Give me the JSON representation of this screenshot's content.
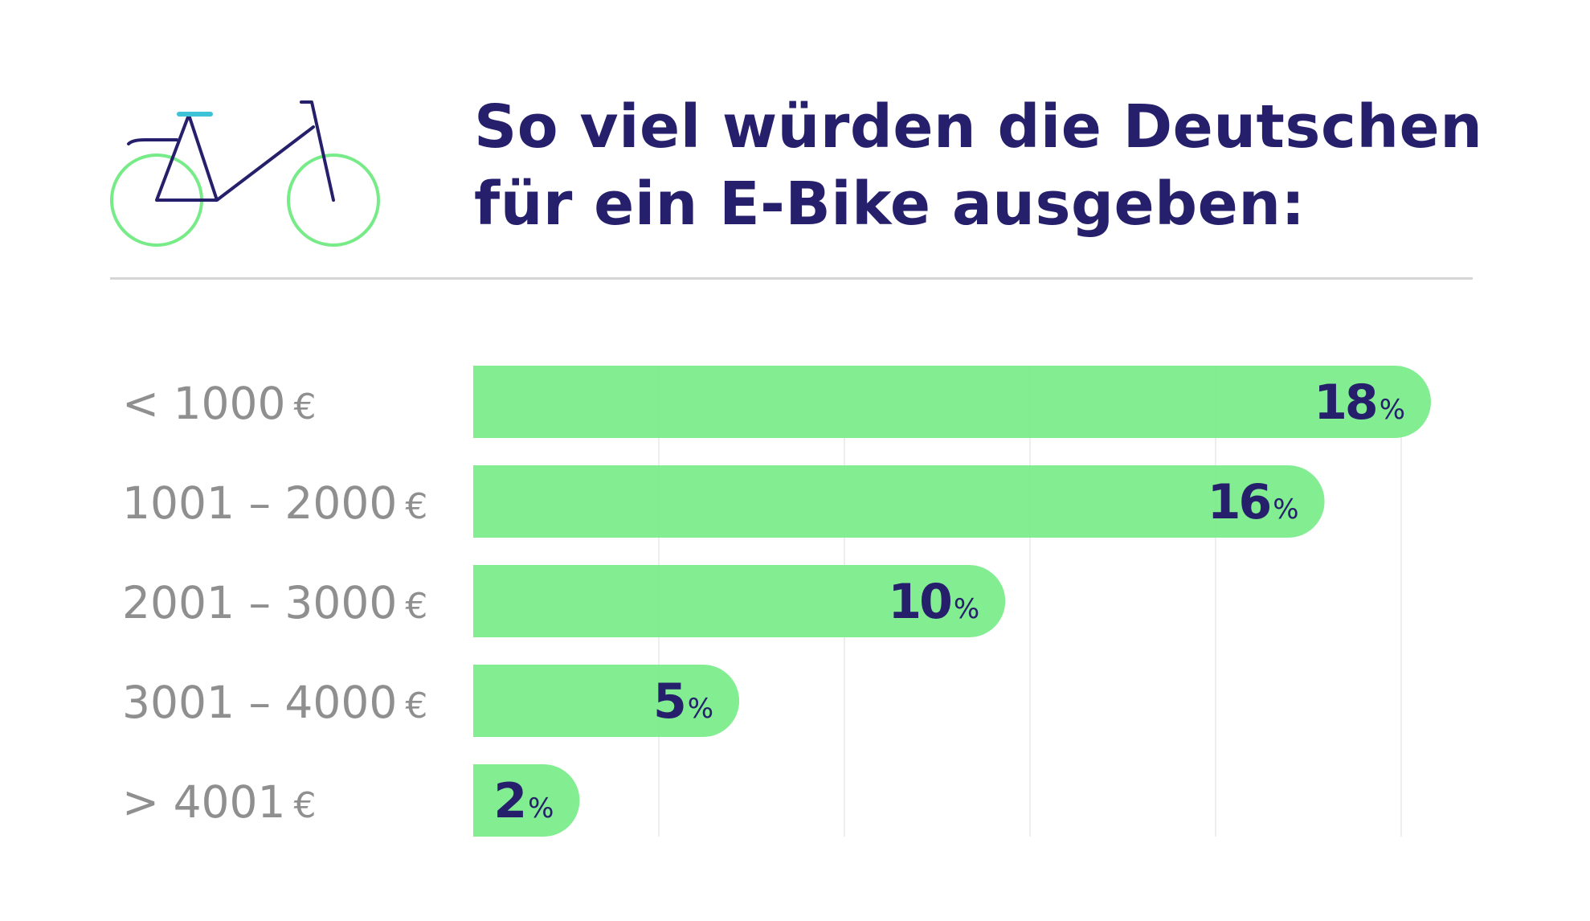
{
  "title": {
    "line1": "So viel würden die Deutschen",
    "line2": "für ein E-Bike ausgeben:"
  },
  "colors": {
    "title": "#26206c",
    "bar": "#77eb88",
    "value_text": "#26206c",
    "category_text": "#8f8f8f",
    "grid": "#eeeeee",
    "divider": "#d6d6d6",
    "bike_frame": "#26206c",
    "bike_wheels": "#77eb88",
    "bike_saddle": "#3ec2d8"
  },
  "icon": "bicycle-icon",
  "chart_data": {
    "type": "bar",
    "orientation": "horizontal",
    "categories": [
      {
        "range": "< 1000",
        "unit": "€"
      },
      {
        "range": "1001 – 2000",
        "unit": "€"
      },
      {
        "range": "2001 – 3000",
        "unit": "€"
      },
      {
        "range": "3001 – 4000",
        "unit": "€"
      },
      {
        "range": "> 4001",
        "unit": "€"
      }
    ],
    "values": [
      18,
      16,
      10,
      5,
      2
    ],
    "value_suffix": "%",
    "xlim": [
      0,
      18
    ],
    "grid": true,
    "legend": false
  }
}
